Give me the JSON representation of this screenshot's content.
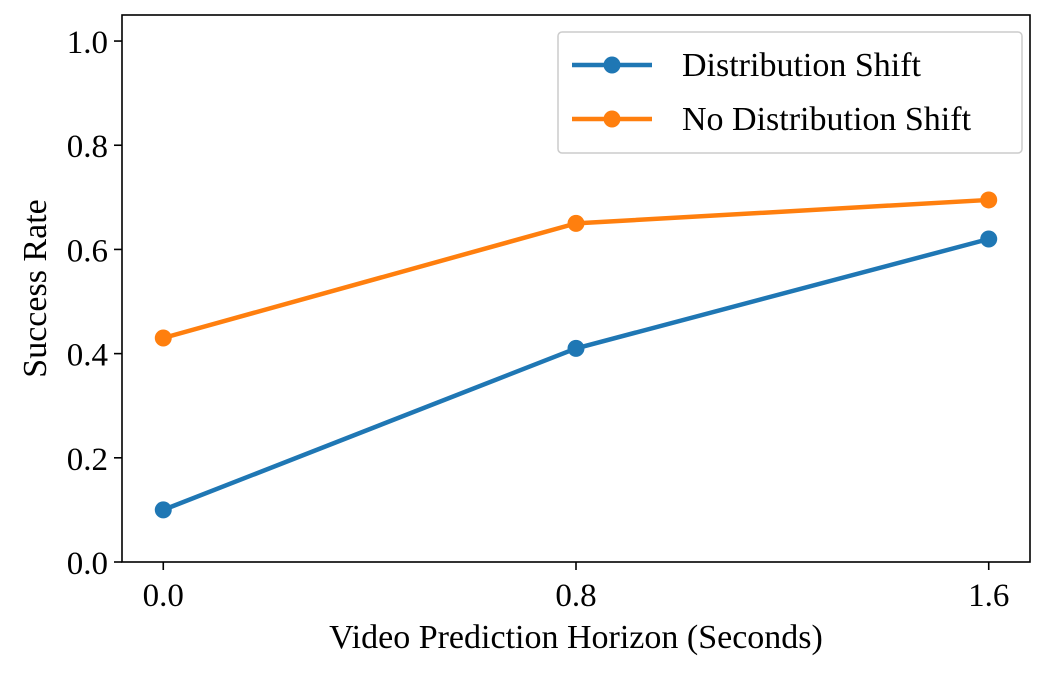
{
  "chart_data": {
    "type": "line",
    "x": [
      0.0,
      0.8,
      1.6
    ],
    "x_tick_labels": [
      "0.0",
      "0.8",
      "1.6"
    ],
    "y_ticks": [
      0.0,
      0.2,
      0.4,
      0.6,
      0.8,
      1.0
    ],
    "y_tick_labels": [
      "0.0",
      "0.2",
      "0.4",
      "0.6",
      "0.8",
      "1.0"
    ],
    "xlabel": "Video Prediction Horizon (Seconds)",
    "ylabel": "Success Rate",
    "xlim": [
      -0.08,
      1.68
    ],
    "ylim": [
      0.0,
      1.05
    ],
    "grid": false,
    "legend_position": "top-right",
    "series": [
      {
        "name": "Distribution Shift",
        "color": "#1f77b4",
        "values": [
          0.1,
          0.41,
          0.62
        ]
      },
      {
        "name": "No Distribution Shift",
        "color": "#ff7f0e",
        "values": [
          0.43,
          0.65,
          0.695
        ]
      }
    ]
  }
}
